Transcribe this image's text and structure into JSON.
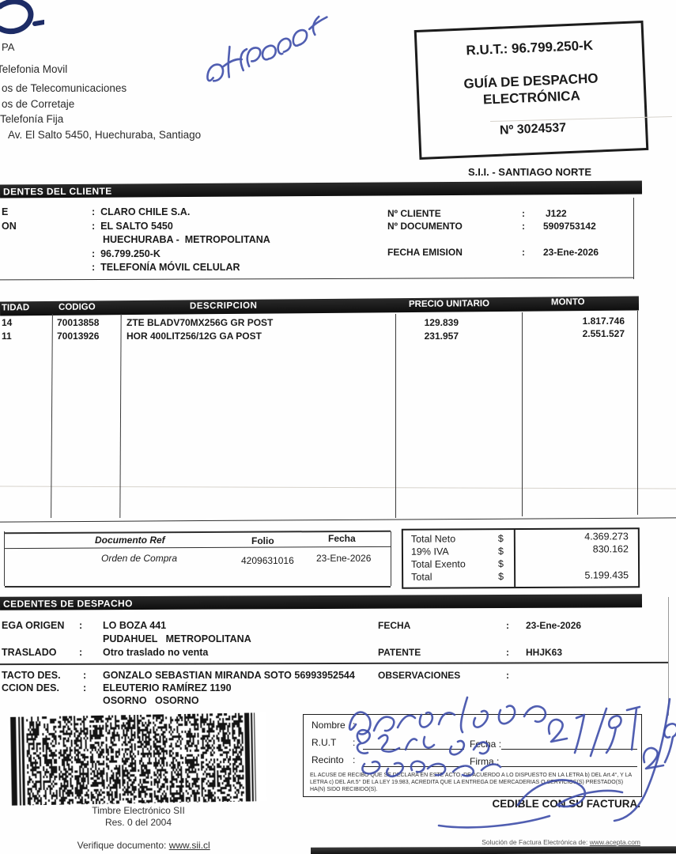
{
  "supplier": {
    "name_fragment": "PA",
    "lines": [
      "Telefonia Movil",
      "os de Telecomunicaciones",
      "os de Corretaje",
      "Telefonía Fija",
      "Av. El Salto 5450, Huechuraba, Santiago"
    ]
  },
  "rut_box": {
    "rut": "R.U.T.: 96.799.250-K",
    "title_line1": "GUÍA DE DESPACHO",
    "title_line2": "ELECTRÓNICA",
    "number": "Nº 3024537"
  },
  "sii_office": "S.I.I. - SANTIAGO NORTE",
  "client": {
    "section_title": "DENTES DEL CLIENTE",
    "rows": [
      {
        "label": "E",
        "value": ":  CLARO CHILE S.A."
      },
      {
        "label": "ON",
        "value": ":  EL SALTO 5450"
      },
      {
        "label": "",
        "value": "HUECHURABA -  METROPOLITANA"
      },
      {
        "label": "",
        "value": ":  96.799.250-K"
      },
      {
        "label": "",
        "value": ":  TELEFONÍA MÓVIL CELULAR"
      }
    ],
    "meta": [
      {
        "label": "Nº CLIENTE",
        "sep": ":",
        "value": "J122"
      },
      {
        "label": "Nº DOCUMENTO",
        "sep": ":",
        "value": "5909753142"
      },
      {
        "label": "FECHA EMISION",
        "sep": ":",
        "value": "23-Ene-2026"
      }
    ]
  },
  "items": {
    "headers": {
      "qty": "TIDAD",
      "code": "CODIGO",
      "desc": "DESCRIPCION",
      "unit": "PRECIO UNITARIO",
      "amount": "MONTO"
    },
    "rows": [
      {
        "qty": "14",
        "code": "70013858",
        "desc": "ZTE BLADV70MX256G GR POST",
        "unit": "129.839",
        "amount": "1.817.746"
      },
      {
        "qty": "11",
        "code": "70013926",
        "desc": "HOR 400LIT256/12G GA POST",
        "unit": "231.957",
        "amount": "2.551.527"
      }
    ]
  },
  "doc_ref": {
    "headers": {
      "ref": "Documento Ref",
      "folio": "Folio",
      "fecha": "Fecha"
    },
    "rows": [
      {
        "ref": "Orden de Compra",
        "folio": "4209631016",
        "fecha": "23-Ene-2026"
      }
    ]
  },
  "totals": {
    "rows": [
      {
        "label": "Total Neto",
        "currency": "$",
        "value": "4.369.273"
      },
      {
        "label": "19% IVA",
        "currency": "$",
        "value": "830.162"
      },
      {
        "label": "Total Exento",
        "currency": "$",
        "value": ""
      },
      {
        "label": "Total",
        "currency": "$",
        "value": "5.199.435"
      }
    ]
  },
  "dispatch": {
    "section_title": "CEDENTES DE DESPACHO",
    "left": [
      {
        "label": "EGA ORIGEN",
        "sep": ":",
        "value": "LO BOZA 441"
      },
      {
        "label": "",
        "sep": "",
        "value": "PUDAHUEL   METROPOLITANA"
      },
      {
        "label": "TRASLADO",
        "sep": ":",
        "value": "Otro traslado no venta"
      },
      {
        "label": "TACTO DES.",
        "sep": ":",
        "value": "GONZALO SEBASTIAN MIRANDA SOTO 56993952544"
      },
      {
        "label": "CCION DES.",
        "sep": ":",
        "value": "ELEUTERIO RAMÍREZ 1190"
      },
      {
        "label": "",
        "sep": "",
        "value": "OSORNO   OSORNO"
      }
    ],
    "right": [
      {
        "label": "FECHA",
        "sep": ":",
        "value": "23-Ene-2026"
      },
      {
        "label": "PATENTE",
        "sep": ":",
        "value": "HHJK63"
      },
      {
        "label": "OBSERVACIONES",
        "sep": ":",
        "value": ""
      }
    ]
  },
  "stamp": {
    "caption1": "Timbre Electrónico SII",
    "caption2": "Res. 0 del 2004",
    "verify_label": "Verifique documento: ",
    "verify_link": "www.sii.cl"
  },
  "receipt": {
    "fields": {
      "nombre": "Nombre",
      "rut": "R.U.T",
      "recinto": "Recinto",
      "fecha": "Fecha",
      "firma": "Firma",
      "colon": ":"
    },
    "legal": "EL ACUSE DE RECIBO QUE SE DECLARA EN ESTE ACTO, DE ACUERDO A LO DISPUESTO EN LA LETRA b) DEL Art.4°, Y LA LETRA c) DEL Art.5° DE LA LEY 19.983, ACREDITA QUE LA ENTREGA DE MERCADERIAS O SERVICIOS(S) PRESTADO(S) HA(N) SIDO RECIBIDO(S).",
    "cedible": "CEDIBLE CON SU FACTURA."
  },
  "footer": {
    "solution_label": "Solución de Factura Electrónica de: ",
    "solution_link": "www.acepta.com"
  },
  "handwriting": {
    "top_annotation": "641854",
    "date": "27/9/26"
  },
  "icons": {
    "logo_fragment": "partial-logo-arc",
    "barcode": "pdf417-2d-barcode"
  },
  "colors": {
    "ink_blue": "#3d4da8",
    "bar_black": "#161616"
  }
}
